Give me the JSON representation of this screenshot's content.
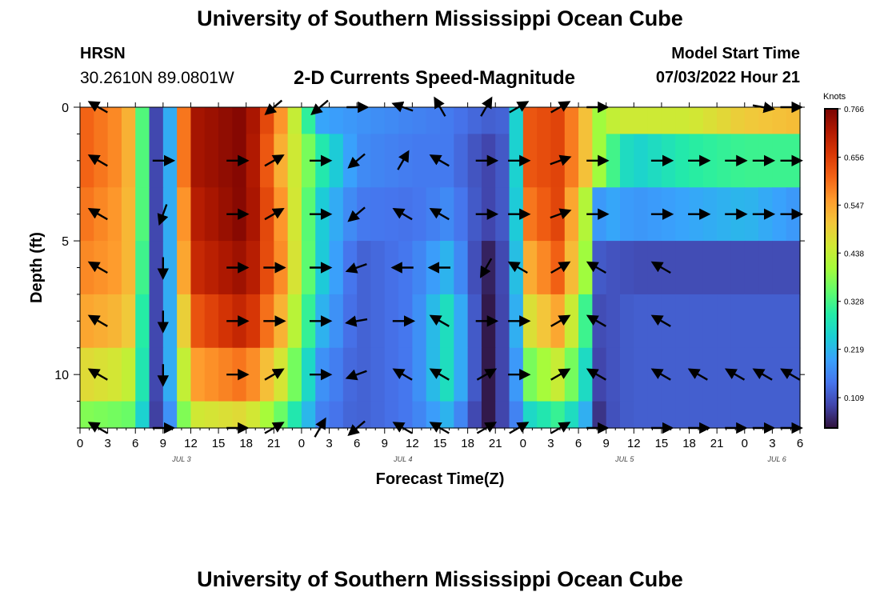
{
  "header": {
    "title": "University of Southern Mississippi Ocean Cube",
    "station_id": "HRSN",
    "coordinates": "30.2610N  89.0801W",
    "plot_title": "2-D Currents Speed-Magnitude",
    "model_start_label": "Model Start Time",
    "model_start_value": "07/03/2022 Hour 21"
  },
  "footer": {
    "title": "University of Southern Mississippi Ocean Cube"
  },
  "colors": {
    "palette": [
      "#30123b",
      "#4145ab",
      "#4675ed",
      "#39a2fc",
      "#1bcfd4",
      "#24eca6",
      "#61fc6c",
      "#a4fc3b",
      "#d1e834",
      "#f3c63a",
      "#fe9b2d",
      "#f36315",
      "#d93806",
      "#b11901",
      "#7a0402"
    ]
  },
  "chart_data": {
    "type": "heatmap",
    "xlabel": "Forecast Time(Z)",
    "ylabel": "Depth (ft)",
    "x_start_hour": 0,
    "x_end_hour": 78,
    "y_range": [
      0,
      12
    ],
    "x_tick_labels": [
      "0",
      "3",
      "6",
      "9",
      "12",
      "15",
      "18",
      "21",
      "0",
      "3",
      "6",
      "9",
      "12",
      "15",
      "18",
      "21",
      "0",
      "3",
      "6",
      "9",
      "12",
      "15",
      "18",
      "21",
      "0",
      "3",
      "6"
    ],
    "y_ticks": [
      0,
      5,
      10
    ],
    "day_labels": [
      {
        "text": "JUL 3",
        "hour": 11
      },
      {
        "text": "JUL 4",
        "hour": 35
      },
      {
        "text": "JUL 5",
        "hour": 59
      },
      {
        "text": "JUL 6",
        "hour": 75.5
      }
    ],
    "colorbar": {
      "unit": "Knots",
      "min": 0.04,
      "max": 0.766,
      "tick_values": [
        0.766,
        0.656,
        0.547,
        0.438,
        0.328,
        0.219,
        0.109
      ],
      "tick_labels": [
        "0.766",
        "0.656",
        "0.547",
        "0.438",
        "0.328",
        "0.219",
        "0.109"
      ]
    },
    "time_hours": [
      0,
      1.5,
      3,
      4.5,
      6,
      7.5,
      9,
      10.5,
      12,
      13.5,
      15,
      16.5,
      18,
      19.5,
      21,
      22.5,
      24,
      25.5,
      27,
      28.5,
      30,
      31.5,
      33,
      34.5,
      36,
      37.5,
      39,
      40.5,
      42,
      43.5,
      45,
      46.5,
      48,
      49.5,
      51,
      52.5,
      54,
      55.5,
      57,
      58.5,
      60,
      61.5,
      63,
      64.5,
      66,
      67.5,
      69,
      70.5,
      72,
      73.5,
      75,
      76.5,
      78
    ],
    "depth_bins_ft": [
      0,
      2,
      4,
      6,
      8,
      10,
      12
    ],
    "key_times": [
      0,
      5,
      6,
      7,
      8,
      9,
      10,
      11,
      12,
      18,
      22,
      26,
      30,
      36,
      40,
      44,
      47,
      48,
      52,
      55,
      56,
      57,
      58,
      60,
      66,
      72,
      78
    ],
    "speed_knots_at_key_times": [
      [
        0.62,
        0.56,
        0.45,
        0.3,
        0.1,
        0.08,
        0.25,
        0.55,
        0.72,
        0.76,
        0.55,
        0.2,
        0.18,
        0.16,
        0.15,
        0.12,
        0.13,
        0.62,
        0.65,
        0.5,
        0.4,
        0.4,
        0.45,
        0.45,
        0.45,
        0.5,
        0.52
      ],
      [
        0.62,
        0.56,
        0.45,
        0.3,
        0.1,
        0.08,
        0.25,
        0.55,
        0.72,
        0.76,
        0.52,
        0.3,
        0.17,
        0.15,
        0.15,
        0.09,
        0.13,
        0.62,
        0.65,
        0.5,
        0.4,
        0.4,
        0.3,
        0.25,
        0.3,
        0.32,
        0.32
      ],
      [
        0.6,
        0.55,
        0.45,
        0.3,
        0.1,
        0.08,
        0.25,
        0.52,
        0.7,
        0.76,
        0.55,
        0.25,
        0.15,
        0.14,
        0.17,
        0.09,
        0.13,
        0.58,
        0.65,
        0.4,
        0.18,
        0.2,
        0.2,
        0.18,
        0.2,
        0.22,
        0.18
      ],
      [
        0.58,
        0.55,
        0.45,
        0.28,
        0.1,
        0.08,
        0.25,
        0.5,
        0.68,
        0.74,
        0.56,
        0.25,
        0.12,
        0.15,
        0.22,
        0.05,
        0.13,
        0.52,
        0.62,
        0.38,
        0.12,
        0.1,
        0.11,
        0.1,
        0.1,
        0.1,
        0.1
      ],
      [
        0.55,
        0.52,
        0.45,
        0.25,
        0.1,
        0.08,
        0.25,
        0.45,
        0.62,
        0.7,
        0.52,
        0.22,
        0.12,
        0.15,
        0.28,
        0.04,
        0.13,
        0.45,
        0.55,
        0.3,
        0.1,
        0.1,
        0.11,
        0.12,
        0.12,
        0.12,
        0.12
      ],
      [
        0.48,
        0.45,
        0.4,
        0.25,
        0.1,
        0.08,
        0.25,
        0.4,
        0.55,
        0.6,
        0.45,
        0.18,
        0.12,
        0.15,
        0.28,
        0.04,
        0.13,
        0.35,
        0.45,
        0.25,
        0.09,
        0.1,
        0.11,
        0.12,
        0.12,
        0.12,
        0.12
      ],
      [
        0.38,
        0.36,
        0.35,
        0.22,
        0.1,
        0.05,
        0.22,
        0.35,
        0.45,
        0.48,
        0.35,
        0.16,
        0.12,
        0.15,
        0.22,
        0.04,
        0.13,
        0.25,
        0.32,
        0.2,
        0.07,
        0.09,
        0.11,
        0.12,
        0.12,
        0.12,
        0.12
      ]
    ],
    "arrow_times": [
      2,
      9,
      17,
      21,
      26,
      30,
      35,
      39,
      44,
      47.5,
      52,
      56,
      63,
      67,
      71,
      74,
      77
    ],
    "arrow_depths": [
      0,
      2,
      4,
      6,
      8,
      10,
      12
    ],
    "arrow_angles_deg": [
      [
        150,
        null,
        null,
        -140,
        -140,
        0,
        160,
        120,
        60,
        30,
        30,
        0,
        null,
        null,
        null,
        -10,
        0
      ],
      [
        150,
        0,
        0,
        30,
        0,
        -140,
        60,
        150,
        0,
        0,
        20,
        0,
        0,
        0,
        0,
        0,
        0
      ],
      [
        150,
        -110,
        0,
        30,
        0,
        -140,
        150,
        150,
        0,
        0,
        20,
        0,
        0,
        0,
        0,
        0,
        0
      ],
      [
        150,
        -90,
        0,
        0,
        0,
        -160,
        180,
        180,
        -120,
        150,
        30,
        150,
        150,
        null,
        null,
        null,
        null
      ],
      [
        150,
        -90,
        0,
        0,
        0,
        -170,
        0,
        150,
        0,
        0,
        30,
        150,
        150,
        null,
        null,
        null,
        null
      ],
      [
        150,
        -90,
        0,
        30,
        0,
        -160,
        150,
        150,
        30,
        0,
        30,
        150,
        150,
        150,
        150,
        150,
        150
      ],
      [
        150,
        0,
        0,
        30,
        60,
        -140,
        150,
        150,
        30,
        30,
        30,
        0,
        0,
        0,
        0,
        0,
        0
      ]
    ]
  }
}
